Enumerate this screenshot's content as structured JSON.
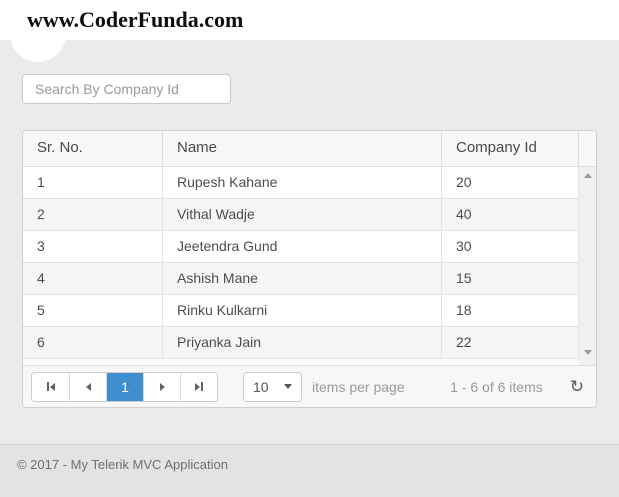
{
  "header": {
    "title": "www.CoderFunda.com"
  },
  "search": {
    "placeholder": "Search By Company Id",
    "value": ""
  },
  "grid": {
    "columns": [
      "Sr. No.",
      "Name",
      "Company Id"
    ],
    "rows": [
      {
        "sr": "1",
        "name": "Rupesh Kahane",
        "company_id": "20"
      },
      {
        "sr": "2",
        "name": "Vithal Wadje",
        "company_id": "40"
      },
      {
        "sr": "3",
        "name": "Jeetendra Gund",
        "company_id": "30"
      },
      {
        "sr": "4",
        "name": "Ashish Mane",
        "company_id": "15"
      },
      {
        "sr": "5",
        "name": "Rinku Kulkarni",
        "company_id": "18"
      },
      {
        "sr": "6",
        "name": "Priyanka Jain",
        "company_id": "22"
      }
    ],
    "pager": {
      "current_page": "1",
      "page_size": "10",
      "items_per_page_label": "items per page",
      "range_label": "1 - 6 of 6 items",
      "refresh_icon": "↻"
    }
  },
  "footer": {
    "copyright": "© 2017 - My Telerik MVC Application"
  },
  "colors": {
    "accent_blue": "#3e8ed0",
    "content_background": "#ebebeb",
    "grid_header_background": "#f7f7f7",
    "alt_row_background": "#f5f5f5"
  }
}
